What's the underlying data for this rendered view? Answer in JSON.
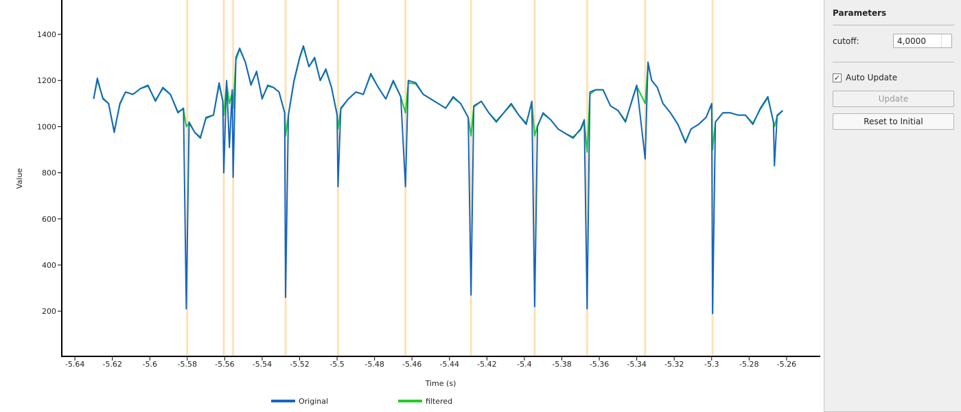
{
  "chart_data": {
    "type": "line",
    "xlabel": "Time (s)",
    "ylabel": "Value",
    "xlim": [
      -5.647,
      -5.242
    ],
    "ylim": [
      4,
      1549
    ],
    "xticks": [
      -5.64,
      -5.62,
      -5.6,
      -5.58,
      -5.56,
      -5.54,
      -5.52,
      -5.5,
      -5.48,
      -5.46,
      -5.44,
      -5.42,
      -5.4,
      -5.38,
      -5.36,
      -5.34,
      -5.32,
      -5.3,
      -5.28,
      -5.26
    ],
    "yticks": [
      200,
      400,
      600,
      800,
      1000,
      1200,
      1400
    ],
    "markers": [
      -5.58,
      -5.5605,
      -5.5555,
      -5.5275,
      -5.4995,
      -5.4635,
      -5.4285,
      -5.3945,
      -5.3665,
      -5.3355,
      -5.2995
    ],
    "marker_color": "#fde2b5",
    "legend": "bottom",
    "x": [
      -5.63,
      -5.628,
      -5.625,
      -5.622,
      -5.619,
      -5.616,
      -5.613,
      -5.609,
      -5.605,
      -5.601,
      -5.597,
      -5.593,
      -5.589,
      -5.585,
      -5.582,
      -5.5805,
      -5.579,
      -5.576,
      -5.573,
      -5.57,
      -5.566,
      -5.563,
      -5.561,
      -5.5605,
      -5.559,
      -5.5575,
      -5.556,
      -5.5555,
      -5.554,
      -5.552,
      -5.549,
      -5.546,
      -5.543,
      -5.54,
      -5.537,
      -5.534,
      -5.531,
      -5.528,
      -5.5275,
      -5.526,
      -5.523,
      -5.52,
      -5.518,
      -5.515,
      -5.512,
      -5.509,
      -5.506,
      -5.503,
      -5.5,
      -5.4995,
      -5.498,
      -5.494,
      -5.49,
      -5.486,
      -5.482,
      -5.478,
      -5.474,
      -5.47,
      -5.466,
      -5.4635,
      -5.462,
      -5.458,
      -5.454,
      -5.45,
      -5.446,
      -5.442,
      -5.438,
      -5.434,
      -5.43,
      -5.4285,
      -5.427,
      -5.423,
      -5.419,
      -5.415,
      -5.411,
      -5.407,
      -5.403,
      -5.399,
      -5.396,
      -5.3945,
      -5.393,
      -5.39,
      -5.386,
      -5.382,
      -5.378,
      -5.374,
      -5.37,
      -5.368,
      -5.3665,
      -5.365,
      -5.362,
      -5.358,
      -5.354,
      -5.35,
      -5.346,
      -5.342,
      -5.34,
      -5.3355,
      -5.334,
      -5.332,
      -5.329,
      -5.326,
      -5.322,
      -5.318,
      -5.314,
      -5.311,
      -5.307,
      -5.303,
      -5.3,
      -5.2995,
      -5.298,
      -5.294,
      -5.29,
      -5.286,
      -5.282,
      -5.278,
      -5.274,
      -5.27,
      -5.267,
      -5.2665,
      -5.265,
      -5.262
    ],
    "series": [
      {
        "name": "filtered",
        "color": "#22cc22",
        "values": [
          1120,
          1200,
          1125,
          1100,
          980,
          1095,
          1150,
          1140,
          1165,
          1175,
          1115,
          1165,
          1140,
          1065,
          1075,
          1000,
          1015,
          975,
          955,
          1035,
          1050,
          1180,
          1110,
          1050,
          1190,
          1100,
          1150,
          1080,
          1290,
          1335,
          1280,
          1185,
          1235,
          1125,
          1175,
          1170,
          1150,
          1060,
          960,
          1050,
          1195,
          1295,
          1345,
          1260,
          1295,
          1200,
          1245,
          1170,
          1055,
          990,
          1075,
          1120,
          1150,
          1140,
          1225,
          1170,
          1120,
          1195,
          1130,
          1060,
          1190,
          1185,
          1140,
          1120,
          1100,
          1080,
          1125,
          1100,
          1040,
          960,
          1085,
          1110,
          1060,
          1025,
          1060,
          1095,
          1050,
          1015,
          1105,
          960,
          1005,
          1055,
          1030,
          990,
          970,
          955,
          985,
          1020,
          890,
          1140,
          1160,
          1160,
          1090,
          1070,
          1025,
          1125,
          1175,
          1100,
          1270,
          1200,
          1170,
          1100,
          1060,
          1010,
          935,
          990,
          1010,
          1040,
          1095,
          900,
          1020,
          1060,
          1060,
          1050,
          1050,
          1015,
          1075,
          1125,
          1020,
          1000,
          1045,
          1070
        ]
      },
      {
        "name": "Original",
        "color": "#1565c0",
        "values": [
          1120,
          1210,
          1120,
          1100,
          975,
          1100,
          1150,
          1140,
          1165,
          1180,
          1110,
          1170,
          1140,
          1060,
          1080,
          210,
          1020,
          975,
          950,
          1040,
          1050,
          1190,
          1110,
          800,
          1200,
          910,
          1160,
          780,
          1300,
          1340,
          1280,
          1180,
          1240,
          1120,
          1180,
          1170,
          1150,
          1060,
          260,
          1050,
          1200,
          1300,
          1350,
          1260,
          1300,
          1200,
          1250,
          1170,
          1050,
          740,
          1080,
          1120,
          1150,
          1140,
          1230,
          1170,
          1120,
          1200,
          1130,
          740,
          1200,
          1190,
          1140,
          1120,
          1100,
          1080,
          1130,
          1100,
          1040,
          270,
          1090,
          1110,
          1060,
          1020,
          1060,
          1100,
          1050,
          1010,
          1110,
          220,
          1000,
          1060,
          1030,
          990,
          970,
          950,
          990,
          1030,
          210,
          1150,
          1160,
          1160,
          1090,
          1070,
          1020,
          1130,
          1180,
          860,
          1280,
          1200,
          1170,
          1100,
          1060,
          1010,
          930,
          990,
          1010,
          1040,
          1100,
          190,
          1020,
          1060,
          1060,
          1050,
          1050,
          1010,
          1080,
          1130,
          1020,
          830,
          1050,
          1070
        ]
      }
    ]
  },
  "panel": {
    "title": "Parameters",
    "cutoff_label": "cutoff:",
    "cutoff_value": "4,0000",
    "auto_update_label": "Auto Update",
    "auto_update": true,
    "update_button": "Update",
    "reset_button": "Reset to Initial"
  }
}
